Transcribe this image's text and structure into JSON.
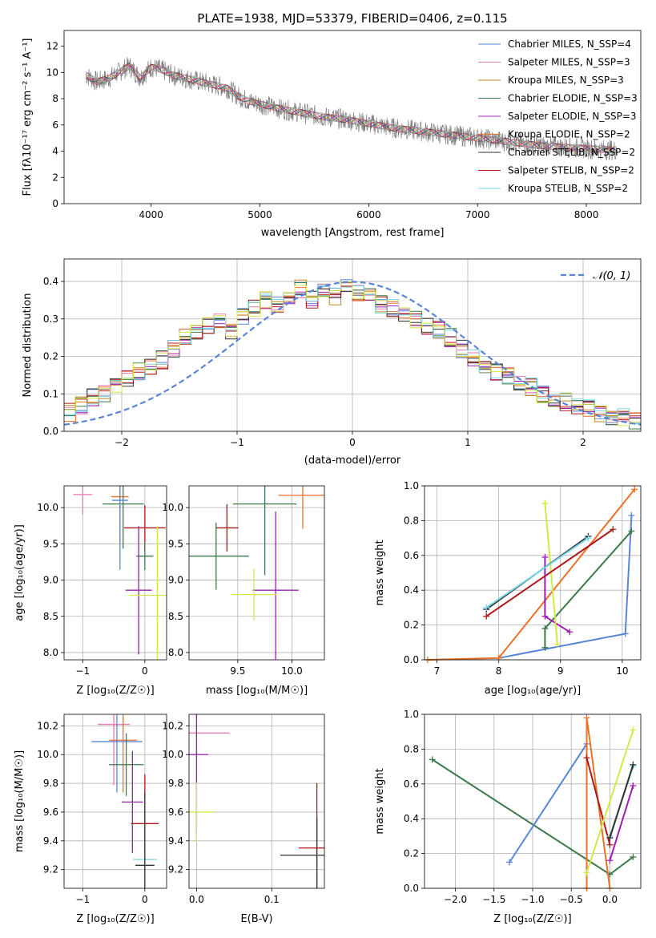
{
  "chart_data": [
    {
      "type": "line",
      "title": "PLATE=1938, MJD=53379, FIBERID=0406, z=0.115",
      "xlabel": "wavelength [Angstrom, rest frame]",
      "ylabel": "Flux [fλ10⁻¹⁷ erg cm⁻² s⁻¹ A⁻¹]",
      "xlim": [
        3200,
        8500
      ],
      "ylim": [
        0,
        13.2
      ],
      "xticks": [
        4000,
        5000,
        6000,
        7000,
        8000
      ],
      "yticks": [
        0,
        2,
        4,
        6,
        8,
        10,
        12
      ],
      "legend_position": "upper right",
      "series": [
        {
          "name": "Chabrier MILES, N_SSP=4",
          "color": "#5a85d6"
        },
        {
          "name": "Salpeter MILES, N_SSP=3",
          "color": "#e87ab4"
        },
        {
          "name": "Kroupa MILES, N_SSP=3",
          "color": "#c08a20"
        },
        {
          "name": "Chabrier ELODIE, N_SSP=3",
          "color": "#3c7a4a"
        },
        {
          "name": "Salpeter ELODIE, N_SSP=3",
          "color": "#9b1fb0"
        },
        {
          "name": "Kroupa ELODIE, N_SSP=2",
          "color": "#e8722a"
        },
        {
          "name": "Chabrier STELIB, N_SSP=2",
          "color": "#333333"
        },
        {
          "name": "Salpeter STELIB, N_SSP=2",
          "color": "#b01818"
        },
        {
          "name": "Kroupa STELIB, N_SSP=2",
          "color": "#79d6e8"
        }
      ],
      "observed_spectrum": {
        "color": "#808080",
        "x": [
          3400,
          3500,
          3600,
          3700,
          3800,
          3900,
          4000,
          4100,
          4200,
          4300,
          4400,
          4500,
          4600,
          4700,
          4800,
          4900,
          5000,
          5200,
          5400,
          5600,
          5800,
          6000,
          6200,
          6400,
          6600,
          6800,
          7000,
          7200,
          7400,
          7600,
          7800,
          8000,
          8200,
          8280
        ],
        "y": [
          9.8,
          9.3,
          9.5,
          10.0,
          10.5,
          9.6,
          10.4,
          10.2,
          9.8,
          9.6,
          9.4,
          9.2,
          9.0,
          8.8,
          8.2,
          7.8,
          7.6,
          7.2,
          6.9,
          6.6,
          6.4,
          6.1,
          5.8,
          5.6,
          5.4,
          5.2,
          5.0,
          4.8,
          4.6,
          4.4,
          4.3,
          4.2,
          4.1,
          4.1
        ]
      }
    },
    {
      "type": "line",
      "xlabel": "(data-model)/error",
      "ylabel": "Normed distribution",
      "xlim": [
        -2.5,
        2.5
      ],
      "ylim": [
        0,
        0.46
      ],
      "xticks": [
        -2,
        -1,
        0,
        1,
        2
      ],
      "yticks": [
        0.0,
        0.1,
        0.2,
        0.3,
        0.4
      ],
      "legend": [
        {
          "name": "𝒩(0, 1)",
          "color": "#5a85d6",
          "style": "dashed"
        }
      ],
      "legend_position": "upper right",
      "histogram_bin_edges": [
        -2.5,
        -2.4,
        -2.3,
        -2.2,
        -2.1,
        -2.0,
        -1.9,
        -1.8,
        -1.7,
        -1.6,
        -1.5,
        -1.4,
        -1.3,
        -1.2,
        -1.1,
        -1.0,
        -0.9,
        -0.8,
        -0.7,
        -0.6,
        -0.5,
        -0.4,
        -0.3,
        -0.2,
        -0.1,
        0.0,
        0.1,
        0.2,
        0.3,
        0.4,
        0.5,
        0.6,
        0.7,
        0.8,
        0.9,
        1.0,
        1.1,
        1.2,
        1.3,
        1.4,
        1.5,
        1.6,
        1.7,
        1.8,
        1.9,
        2.0,
        2.1,
        2.2,
        2.3,
        2.4,
        2.5
      ],
      "histogram_values": [
        0.05,
        0.07,
        0.09,
        0.1,
        0.12,
        0.14,
        0.16,
        0.17,
        0.19,
        0.22,
        0.25,
        0.26,
        0.28,
        0.29,
        0.27,
        0.31,
        0.33,
        0.35,
        0.34,
        0.36,
        0.38,
        0.35,
        0.37,
        0.36,
        0.39,
        0.37,
        0.36,
        0.34,
        0.33,
        0.31,
        0.3,
        0.28,
        0.27,
        0.25,
        0.22,
        0.2,
        0.18,
        0.16,
        0.15,
        0.13,
        0.12,
        0.1,
        0.09,
        0.08,
        0.07,
        0.06,
        0.05,
        0.04,
        0.04,
        0.03
      ],
      "normal_mean": 0,
      "normal_sigma": 1
    },
    {
      "type": "scatter",
      "panel": "age-Z",
      "xlabel": "Z [log₁₀(Z/Z☉)]",
      "ylabel": "age  [log₁₀(age/yr)]",
      "xlim": [
        -1.3,
        0.35
      ],
      "ylim": [
        7.9,
        10.3
      ],
      "xticks": [
        -1,
        0
      ],
      "yticks": [
        8.0,
        8.5,
        9.0,
        9.5,
        10.0
      ],
      "points": [
        {
          "x": -1.0,
          "y": 10.18,
          "color": "#e87ab4"
        },
        {
          "x": -0.4,
          "y": 10.15,
          "color": "#e8722a"
        },
        {
          "x": -0.35,
          "y": 10.05,
          "color": "#3c7a4a"
        },
        {
          "x": -0.4,
          "y": 10.1,
          "color": "#5a85d6"
        },
        {
          "x": 0.0,
          "y": 9.72,
          "color": "#b01818"
        },
        {
          "x": 0.0,
          "y": 9.33,
          "color": "#3c7a4a"
        },
        {
          "x": -0.1,
          "y": 8.86,
          "color": "#9b1fb0"
        },
        {
          "x": 0.2,
          "y": 8.79,
          "color": "#d2e84a"
        }
      ]
    },
    {
      "type": "scatter",
      "panel": "age-mass",
      "xlabel": "mass [log₁₀(M/M☉)]",
      "ylabel": "",
      "xlim": [
        9.05,
        10.3
      ],
      "ylim": [
        7.9,
        10.3
      ],
      "xticks": [
        9.5,
        10.0
      ],
      "yticks": [
        8.0,
        8.5,
        9.0,
        9.5,
        10.0
      ],
      "points": [
        {
          "x": 10.1,
          "y": 10.17,
          "color": "#e8722a"
        },
        {
          "x": 9.75,
          "y": 10.05,
          "color": "#3c7a4a"
        },
        {
          "x": 9.4,
          "y": 9.72,
          "color": "#b01818"
        },
        {
          "x": 9.3,
          "y": 9.33,
          "color": "#3c7a4a"
        },
        {
          "x": 9.85,
          "y": 8.86,
          "color": "#9b1fb0"
        },
        {
          "x": 9.65,
          "y": 8.8,
          "color": "#d2e84a"
        }
      ]
    },
    {
      "type": "line",
      "panel": "weight-age",
      "xlabel": "age  [log₁₀(age/yr)]",
      "ylabel": "mass weight",
      "xlim": [
        6.8,
        10.3
      ],
      "ylim": [
        0,
        1.0
      ],
      "xticks": [
        7,
        8,
        9,
        10
      ],
      "yticks": [
        0.0,
        0.2,
        0.4,
        0.6,
        0.8,
        1.0
      ],
      "series": [
        {
          "color": "#5a85d6",
          "x": [
            8.0,
            10.05,
            10.15
          ],
          "y": [
            0.01,
            0.15,
            0.83
          ]
        },
        {
          "color": "#e8722a",
          "x": [
            6.85,
            8.0,
            10.2
          ],
          "y": [
            0.0,
            0.01,
            0.98
          ]
        },
        {
          "color": "#3c7a4a",
          "x": [
            8.75,
            8.75,
            10.15
          ],
          "y": [
            0.07,
            0.18,
            0.74
          ]
        },
        {
          "color": "#9b1fb0",
          "x": [
            8.75,
            8.75,
            9.15
          ],
          "y": [
            0.59,
            0.25,
            0.16
          ]
        },
        {
          "color": "#d2e84a",
          "x": [
            8.75,
            8.95
          ],
          "y": [
            0.9,
            0.09
          ]
        },
        {
          "color": "#333333",
          "x": [
            7.8,
            9.45
          ],
          "y": [
            0.29,
            0.71
          ]
        },
        {
          "color": "#b01818",
          "x": [
            7.8,
            9.85
          ],
          "y": [
            0.25,
            0.75
          ]
        },
        {
          "color": "#79d6e8",
          "x": [
            7.8,
            9.45
          ],
          "y": [
            0.3,
            0.7
          ]
        }
      ]
    },
    {
      "type": "scatter",
      "panel": "mass-Z",
      "xlabel": "Z [log₁₀(Z/Z☉)]",
      "ylabel": "mass [log₁₀(M/M☉)]",
      "xlim": [
        -1.3,
        0.35
      ],
      "ylim": [
        9.07,
        10.28
      ],
      "xticks": [
        -1,
        0
      ],
      "yticks": [
        9.2,
        9.4,
        9.6,
        9.8,
        10.0,
        10.2
      ],
      "points": [
        {
          "x": -0.5,
          "y": 10.21,
          "color": "#e87ab4"
        },
        {
          "x": -0.35,
          "y": 10.1,
          "color": "#e8722a"
        },
        {
          "x": -0.45,
          "y": 10.09,
          "color": "#5a85d6"
        },
        {
          "x": -0.3,
          "y": 9.93,
          "color": "#3c7a4a"
        },
        {
          "x": -0.2,
          "y": 9.67,
          "color": "#9b1fb0"
        },
        {
          "x": 0.0,
          "y": 9.52,
          "color": "#b01818"
        },
        {
          "x": 0.0,
          "y": 9.27,
          "color": "#79d6e8"
        },
        {
          "x": 0.0,
          "y": 9.23,
          "color": "#333333"
        }
      ]
    },
    {
      "type": "scatter",
      "panel": "mass-EBV",
      "xlabel": "E(B-V)",
      "ylabel": "",
      "xlim": [
        -0.01,
        0.17
      ],
      "ylim": [
        9.07,
        10.28
      ],
      "xticks": [
        0.0,
        0.1
      ],
      "yticks": [
        9.2,
        9.4,
        9.6,
        9.8,
        10.0,
        10.2
      ],
      "points": [
        {
          "x": 0.0,
          "y": 10.15,
          "color": "#e87ab4"
        },
        {
          "x": 0.0,
          "y": 10.0,
          "color": "#9b1fb0"
        },
        {
          "x": 0.0,
          "y": 9.6,
          "color": "#d2e84a"
        },
        {
          "x": 0.16,
          "y": 9.35,
          "color": "#b01818"
        },
        {
          "x": 0.16,
          "y": 9.3,
          "color": "#333333"
        }
      ]
    },
    {
      "type": "line",
      "panel": "weight-Z",
      "xlabel": "Z [log₁₀(Z/Z☉)]",
      "ylabel": "mass weight",
      "xlim": [
        -2.4,
        0.4
      ],
      "ylim": [
        0,
        1.0
      ],
      "xticks": [
        -2.0,
        -1.5,
        -1.0,
        -0.5,
        0.0
      ],
      "yticks": [
        0.0,
        0.2,
        0.4,
        0.6,
        0.8,
        1.0
      ],
      "series": [
        {
          "color": "#3c7a4a",
          "x": [
            -2.3,
            0.0,
            0.3
          ],
          "y": [
            0.74,
            0.08,
            0.18
          ]
        },
        {
          "color": "#5a85d6",
          "x": [
            -1.3,
            -0.3
          ],
          "y": [
            0.15,
            0.83
          ]
        },
        {
          "color": "#e8722a",
          "x": [
            -0.3,
            -0.3,
            0.0
          ],
          "y": [
            0.0,
            0.98,
            0.0
          ]
        },
        {
          "color": "#b01818",
          "x": [
            -0.3,
            0.0
          ],
          "y": [
            0.75,
            0.25
          ]
        },
        {
          "color": "#9b1fb0",
          "x": [
            0.0,
            0.3
          ],
          "y": [
            0.16,
            0.59
          ]
        },
        {
          "color": "#d2e84a",
          "x": [
            -0.3,
            0.3
          ],
          "y": [
            0.09,
            0.91
          ]
        },
        {
          "color": "#79d6e8",
          "x": [
            0.0,
            0.3
          ],
          "y": [
            0.3,
            0.7
          ]
        },
        {
          "color": "#333333",
          "x": [
            0.0,
            0.3
          ],
          "y": [
            0.29,
            0.71
          ]
        }
      ]
    }
  ]
}
